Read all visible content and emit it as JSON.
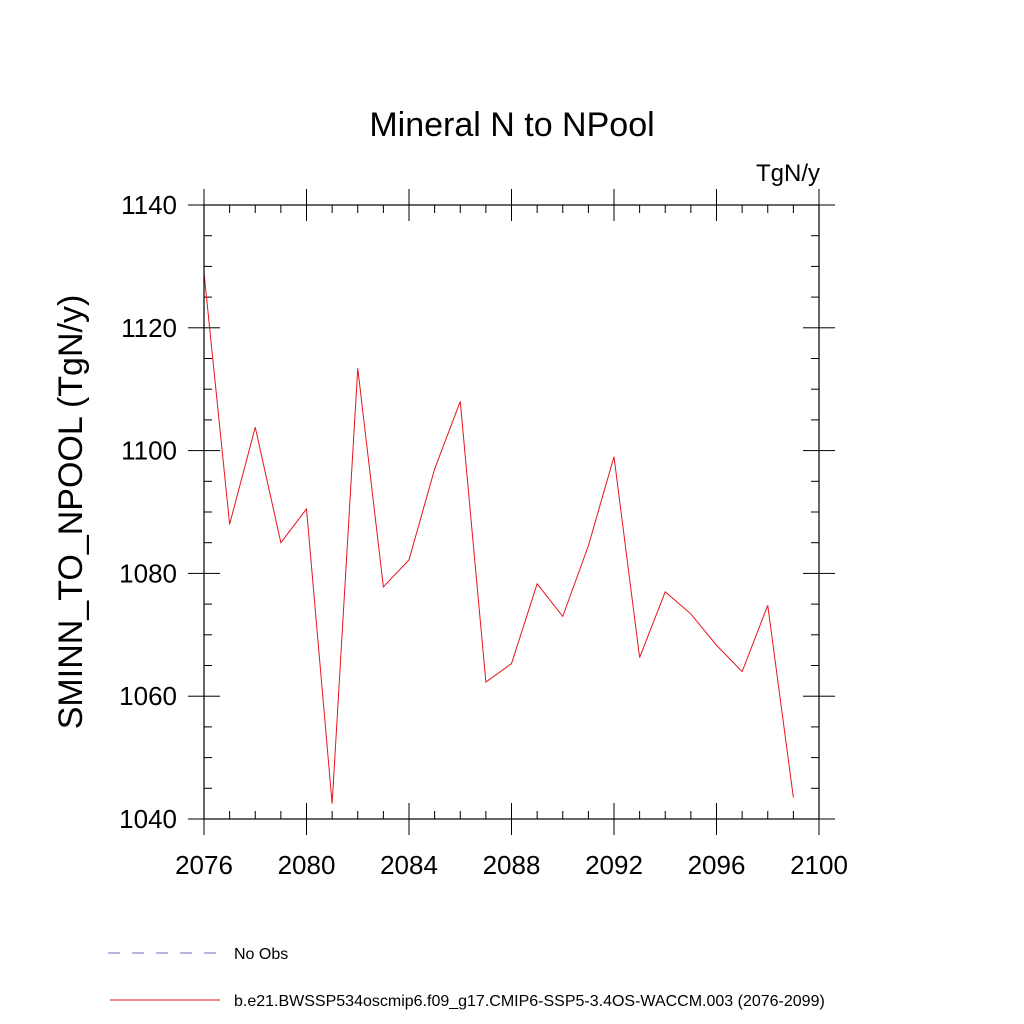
{
  "chart_data": {
    "type": "line",
    "title": "Mineral N to NPool",
    "units": "TgN/y",
    "xlabel": "",
    "ylabel": "SMINN_TO_NPOOL  (TgN/y)",
    "xlim": [
      2076,
      2100
    ],
    "ylim": [
      1040,
      1140
    ],
    "x_ticks": [
      2076,
      2080,
      2084,
      2088,
      2092,
      2096,
      2100
    ],
    "y_ticks": [
      1040,
      1060,
      1080,
      1100,
      1120,
      1140
    ],
    "x_tick_labels": [
      "2076",
      "2080",
      "2084",
      "2088",
      "2092",
      "2096",
      "2100"
    ],
    "y_tick_labels": [
      "1040",
      "1060",
      "1080",
      "1100",
      "1120",
      "1140"
    ],
    "series": [
      {
        "name": "b.e21.BWSSP534oscmip6.f09_g17.CMIP6-SSP5-3.4OS-WACCM.003 (2076-2099)",
        "color": "#e8141b",
        "x": [
          2076,
          2077,
          2078,
          2079,
          2080,
          2081,
          2082,
          2083,
          2084,
          2085,
          2086,
          2087,
          2088,
          2089,
          2090,
          2091,
          2092,
          2093,
          2094,
          2095,
          2096,
          2097,
          2098,
          2099
        ],
        "values": [
          1129,
          1088,
          1103.8,
          1085,
          1090.5,
          1042.5,
          1113.4,
          1077.8,
          1082.2,
          1097,
          1108,
          1062.3,
          1065.3,
          1078.3,
          1073,
          1084.5,
          1099,
          1066.3,
          1077,
          1073.4,
          1068.3,
          1064,
          1074.8,
          1043.5
        ]
      }
    ],
    "legend": {
      "placement": "bottom-left",
      "entries": [
        {
          "label": "No Obs",
          "color": "#6e6eb4",
          "style": "dashed"
        },
        {
          "label": "b.e21.BWSSP534oscmip6.f09_g17.CMIP6-SSP5-3.4OS-WACCM.003 (2076-2099)",
          "color": "#e8141b",
          "style": "solid"
        }
      ]
    }
  }
}
